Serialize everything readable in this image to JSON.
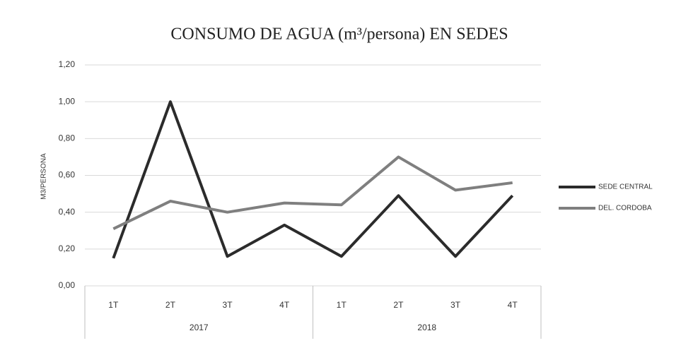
{
  "chart_data": {
    "type": "line",
    "title": "CONSUMO DE AGUA (m³/persona) EN SEDES",
    "y_label": "M3/PERSONA",
    "categories": [
      "1T",
      "2T",
      "3T",
      "4T",
      "1T",
      "2T",
      "3T",
      "4T"
    ],
    "category_groups": [
      "2017",
      "2018"
    ],
    "series": [
      {
        "name": "SEDE CENTRAL",
        "color": "#2b2b2b",
        "values": [
          0.15,
          1.0,
          0.16,
          0.33,
          0.16,
          0.49,
          0.16,
          0.49
        ]
      },
      {
        "name": "DEL. CORDOBA",
        "color": "#7f7f7f",
        "values": [
          0.31,
          0.46,
          0.4,
          0.45,
          0.44,
          0.7,
          0.52,
          0.56
        ]
      }
    ],
    "ylim": [
      0,
      1.2
    ],
    "yticks": [
      {
        "value": 0,
        "label": "0,00"
      },
      {
        "value": 0.2,
        "label": "0,20"
      },
      {
        "value": 0.4,
        "label": "0,40"
      },
      {
        "value": 0.6,
        "label": "0,60"
      },
      {
        "value": 0.8,
        "label": "0,80"
      },
      {
        "value": 1.0,
        "label": "1,00"
      },
      {
        "value": 1.2,
        "label": "1,20"
      }
    ],
    "grid": true,
    "legend": "right"
  }
}
